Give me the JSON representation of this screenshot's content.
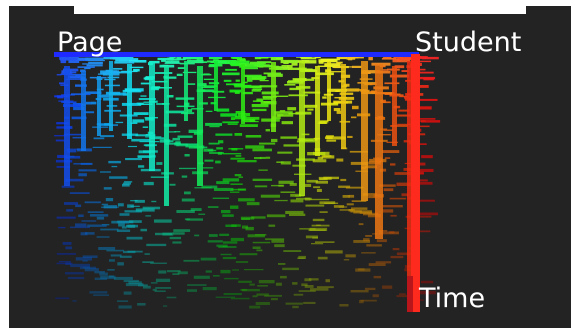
{
  "axes": {
    "page": "Page",
    "student": "Student",
    "time": "Time"
  },
  "colors": {
    "background": "#232323",
    "page_axis": "#1e2aff",
    "time_axis": "#ff2a1e",
    "label": "#ffffff"
  }
}
